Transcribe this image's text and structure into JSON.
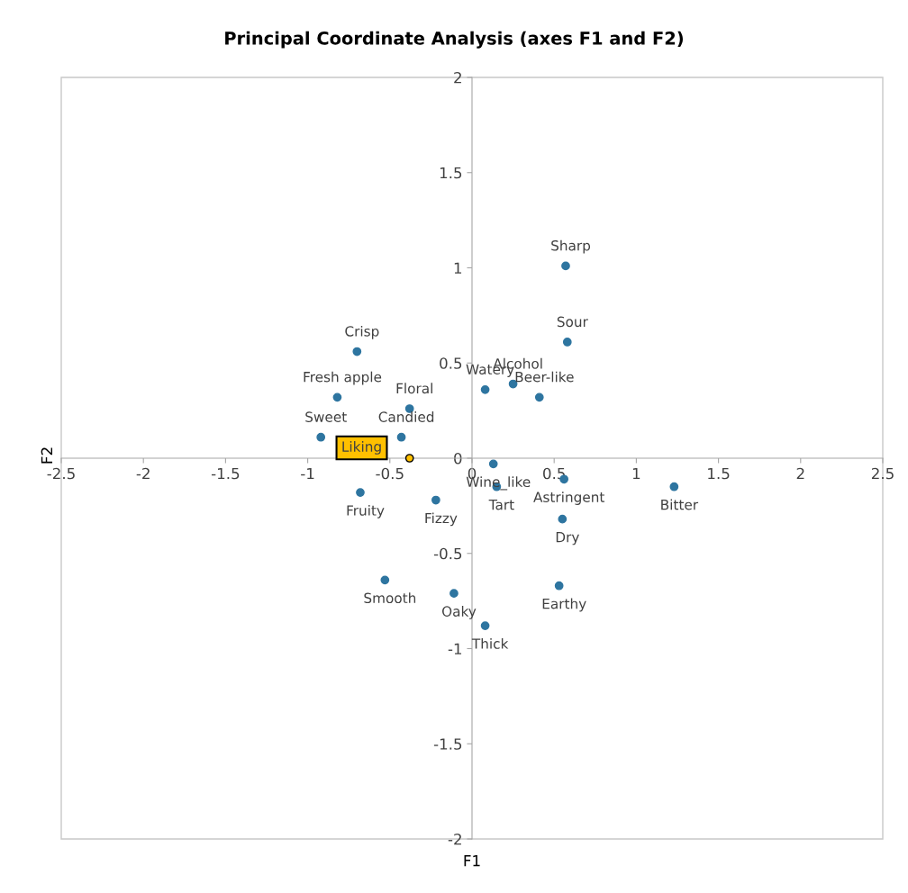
{
  "chart_data": {
    "type": "scatter",
    "title": "Principal Coordinate Analysis (axes F1 and F2)",
    "xlabel": "F1",
    "ylabel": "F2",
    "xlim": [
      -2.5,
      2.5
    ],
    "ylim": [
      -2,
      2
    ],
    "xticks": [
      -2.5,
      -2,
      -1.5,
      -1,
      -0.5,
      0,
      0.5,
      1,
      1.5,
      2,
      2.5
    ],
    "yticks": [
      -2,
      -1.5,
      -1,
      -0.5,
      0,
      0.5,
      1,
      1.5,
      2
    ],
    "grid": false,
    "marker": "circle",
    "series": [
      {
        "color": "#2e75a0",
        "x": [
          0.57,
          0.58,
          0.25,
          0.08,
          0.41,
          -0.7,
          -0.82,
          -0.38,
          -0.92,
          -0.43,
          0.13,
          0.56,
          1.23,
          0.15,
          -0.68,
          -0.22,
          0.55,
          -0.53,
          0.53,
          -0.11,
          0.08
        ],
        "values": [
          1.01,
          0.61,
          0.39,
          0.36,
          0.32,
          0.56,
          0.32,
          0.26,
          0.11,
          0.11,
          -0.03,
          -0.11,
          -0.15,
          -0.15,
          -0.18,
          -0.22,
          -0.32,
          -0.64,
          -0.67,
          -0.71,
          -0.88
        ]
      },
      {
        "name": "Liking",
        "color": "#ffc000",
        "x": [
          -0.38
        ],
        "values": [
          0.0
        ]
      }
    ],
    "annotations": [
      {
        "text": "Sharp",
        "x": 0.57,
        "y": 1.01
      },
      {
        "text": "Sour",
        "x": 0.58,
        "y": 0.61
      },
      {
        "text": "Alcohol",
        "x": 0.25,
        "y": 0.39
      },
      {
        "text": "Watery",
        "x": 0.08,
        "y": 0.36
      },
      {
        "text": "Beer-like",
        "x": 0.41,
        "y": 0.32
      },
      {
        "text": "Crisp",
        "x": -0.7,
        "y": 0.56
      },
      {
        "text": "Fresh apple",
        "x": -0.82,
        "y": 0.32
      },
      {
        "text": "Floral",
        "x": -0.38,
        "y": 0.26
      },
      {
        "text": "Sweet",
        "x": -0.92,
        "y": 0.11
      },
      {
        "text": "Candied",
        "x": -0.43,
        "y": 0.11
      },
      {
        "text": "Wine_like",
        "x": 0.13,
        "y": -0.03
      },
      {
        "text": "Astringent",
        "x": 0.56,
        "y": -0.11
      },
      {
        "text": "Bitter",
        "x": 1.23,
        "y": -0.15
      },
      {
        "text": "Tart",
        "x": 0.15,
        "y": -0.15
      },
      {
        "text": "Fruity",
        "x": -0.68,
        "y": -0.18
      },
      {
        "text": "Fizzy",
        "x": -0.22,
        "y": -0.22
      },
      {
        "text": "Dry",
        "x": 0.55,
        "y": -0.32
      },
      {
        "text": "Smooth",
        "x": -0.53,
        "y": -0.64
      },
      {
        "text": "Earthy",
        "x": 0.53,
        "y": -0.67
      },
      {
        "text": "Oaky",
        "x": -0.11,
        "y": -0.71
      },
      {
        "text": "Thick",
        "x": 0.08,
        "y": -0.88
      }
    ]
  }
}
